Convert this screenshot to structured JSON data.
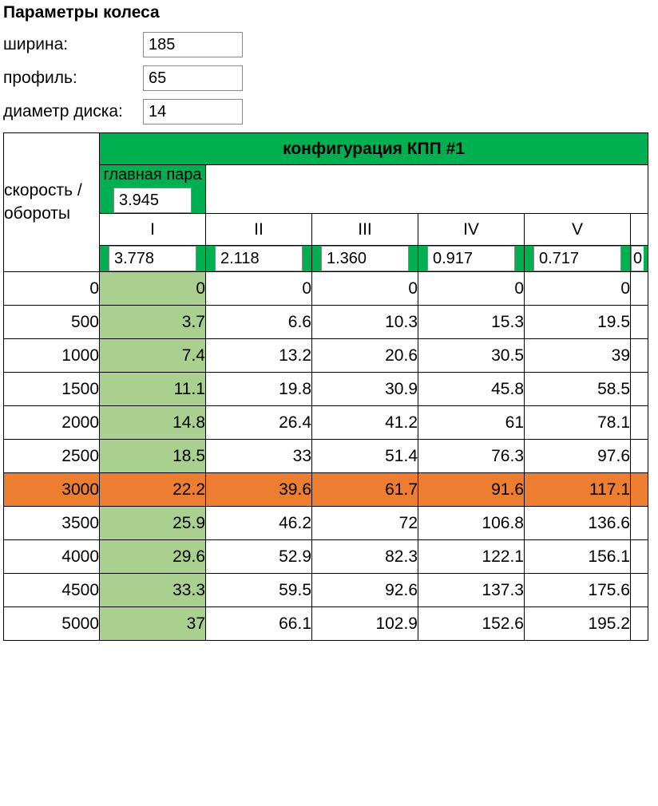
{
  "colors": {
    "header_green": "#00b050",
    "gear1_fill": "#a9d08e",
    "highlight_row": "#ed7d31",
    "border": "#000000",
    "text": "#000000",
    "input_border": "#888888",
    "background": "#ffffff"
  },
  "wheel": {
    "section_title": "Параметры колеса",
    "width_label": "ширина:",
    "width_value": "185",
    "profile_label": "профиль:",
    "profile_value": "65",
    "disk_label": "диаметр диска:",
    "disk_value": "14"
  },
  "table": {
    "rowheader_label": "скорость / обороты",
    "config_title": "конфигурация КПП #1",
    "main_pair_label": "главная пара",
    "main_pair_value": "3.945",
    "gears": {
      "roman": [
        "I",
        "II",
        "III",
        "IV",
        "V"
      ],
      "ratios": [
        "3.778",
        "2.118",
        "1.360",
        "0.917",
        "0.717"
      ],
      "edge_ratio_fragment": "0"
    },
    "highlight_rpm": 3000,
    "rows": [
      {
        "rpm": "0",
        "v": [
          "0",
          "0",
          "0",
          "0",
          "0"
        ]
      },
      {
        "rpm": "500",
        "v": [
          "3.7",
          "6.6",
          "10.3",
          "15.3",
          "19.5"
        ]
      },
      {
        "rpm": "1000",
        "v": [
          "7.4",
          "13.2",
          "20.6",
          "30.5",
          "39"
        ]
      },
      {
        "rpm": "1500",
        "v": [
          "11.1",
          "19.8",
          "30.9",
          "45.8",
          "58.5"
        ]
      },
      {
        "rpm": "2000",
        "v": [
          "14.8",
          "26.4",
          "41.2",
          "61",
          "78.1"
        ]
      },
      {
        "rpm": "2500",
        "v": [
          "18.5",
          "33",
          "51.4",
          "76.3",
          "97.6"
        ]
      },
      {
        "rpm": "3000",
        "v": [
          "22.2",
          "39.6",
          "61.7",
          "91.6",
          "117.1"
        ]
      },
      {
        "rpm": "3500",
        "v": [
          "25.9",
          "46.2",
          "72",
          "106.8",
          "136.6"
        ]
      },
      {
        "rpm": "4000",
        "v": [
          "29.6",
          "52.9",
          "82.3",
          "122.1",
          "156.1"
        ]
      },
      {
        "rpm": "4500",
        "v": [
          "33.3",
          "59.5",
          "92.6",
          "137.3",
          "175.6"
        ]
      },
      {
        "rpm": "5000",
        "v": [
          "37",
          "66.1",
          "102.9",
          "152.6",
          "195.2"
        ]
      }
    ]
  }
}
